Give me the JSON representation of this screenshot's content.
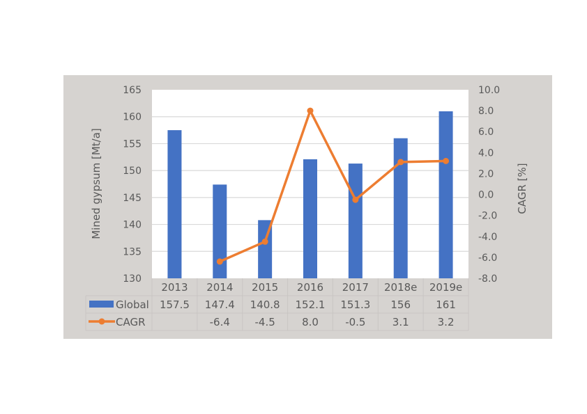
{
  "chart_data": {
    "type": "bar+line",
    "categories": [
      "2013",
      "2014",
      "2015",
      "2016",
      "2017",
      "2018e",
      "2019e"
    ],
    "series": [
      {
        "name": "Global",
        "type": "bar",
        "axis": "left",
        "color": "#4472c4",
        "values": [
          157.5,
          147.4,
          140.8,
          152.1,
          151.3,
          156,
          161
        ],
        "labels": [
          "157.5",
          "147.4",
          "140.8",
          "152.1",
          "151.3",
          "156",
          "161"
        ]
      },
      {
        "name": "CAGR",
        "type": "line",
        "axis": "right",
        "color": "#ed7d31",
        "values": [
          null,
          -6.4,
          -4.5,
          8.0,
          -0.5,
          3.1,
          3.2
        ],
        "labels": [
          "",
          "-6.4",
          "-4.5",
          "8.0",
          "-0.5",
          "3.1",
          "3.2"
        ]
      }
    ],
    "ylabel": "Mined gypsum [Mt/a]",
    "y2label": "CAGR [%]",
    "ylim": [
      130,
      165
    ],
    "yticks": [
      "165",
      "160",
      "155",
      "150",
      "145",
      "140",
      "135",
      "130"
    ],
    "y2lim": [
      -8.0,
      10.0
    ],
    "y2ticks": [
      "10.0",
      "8.0",
      "6.0",
      "4.0",
      "2.0",
      "0.0",
      "-2.0",
      "-4.0",
      "-6.0",
      "-8.0"
    ],
    "grid": true,
    "legend": "data table"
  },
  "colors": {
    "bar": "#4472c4",
    "line": "#ed7d31",
    "background": "#d6d3d0",
    "plot": "#ffffff",
    "grid": "#d9d9d9",
    "text": "#595959"
  }
}
